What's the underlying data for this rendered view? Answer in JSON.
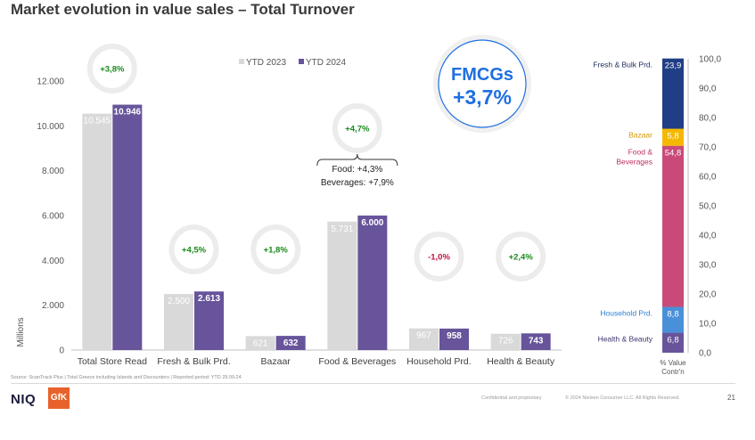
{
  "title": "Market evolution in value sales – Total Turnover",
  "chart_data": [
    {
      "type": "bar",
      "categories": [
        "Total Store Read",
        "Fresh & Bulk Prd.",
        "Bazaar",
        "Food & Beverages",
        "Household Prd.",
        "Health & Beauty"
      ],
      "series": [
        {
          "name": "YTD 2023",
          "values": [
            10545,
            2500,
            621,
            5731,
            967,
            726
          ],
          "labels": [
            "10.545",
            "2.500",
            "621",
            "5.731",
            "967",
            "726"
          ],
          "color": "#d9d9d9"
        },
        {
          "name": "YTD 2024",
          "values": [
            10946,
            2613,
            632,
            6000,
            958,
            743
          ],
          "labels": [
            "10.946",
            "2.613",
            "632",
            "6.000",
            "958",
            "743"
          ],
          "color": "#67549a"
        }
      ],
      "growth": [
        "+3,8%",
        "+4,5%",
        "+1,8%",
        "+4,7%",
        "-1,0%",
        "+2,4%"
      ],
      "growth_colors": [
        "#1a8a1a",
        "#1a8a1a",
        "#1a8a1a",
        "#1a8a1a",
        "#c0143c",
        "#1a8a1a"
      ],
      "ylim": [
        0,
        12000
      ],
      "yticks": [
        0,
        2000,
        4000,
        6000,
        8000,
        10000,
        12000
      ],
      "ytick_labels": [
        "0",
        "2.000",
        "4.000",
        "6.000",
        "8.000",
        "10.000",
        "12.000"
      ],
      "ylabel": "Millions",
      "grid": false,
      "legend": "top-center",
      "annotation": {
        "line1": "Food: +4,3%",
        "line2": "Beverages: +7,9%"
      }
    },
    {
      "type": "bar",
      "stacked": true,
      "segments": [
        {
          "name": "Health & Beauty",
          "value": 6.8,
          "label": "6,8",
          "color": "#67549a",
          "label_color": "#3d3470"
        },
        {
          "name": "Household Prd.",
          "value": 8.8,
          "label": "8,8",
          "color": "#4a90d9",
          "label_color": "#2f7fd0"
        },
        {
          "name": "Food & Beverages",
          "value": 54.8,
          "label": "54,8",
          "color": "#c94a78",
          "label_color": "#c0305e"
        },
        {
          "name": "Bazaar",
          "value": 5.8,
          "label": "5,8",
          "color": "#f5b800",
          "label_color": "#d29a00"
        },
        {
          "name": "Fresh & Bulk Prd.",
          "value": 23.9,
          "label": "23,9",
          "color": "#1f3e86",
          "label_color": "#1c2c5c"
        }
      ],
      "ylim": [
        0,
        100
      ],
      "yticks": [
        0,
        10,
        20,
        30,
        40,
        50,
        60,
        70,
        80,
        90,
        100
      ],
      "ytick_labels": [
        "0,0",
        "10,0",
        "20,0",
        "30,0",
        "40,0",
        "50,0",
        "60,0",
        "70,0",
        "80,0",
        "90,0",
        "100,0"
      ],
      "xlabel_line1": "% Value",
      "xlabel_line2": "Contr'n",
      "labels": [
        "Health & Beauty",
        "Household Prd.",
        "Food &\nBeverages",
        "Bazaar",
        "Fresh & Bulk Prd."
      ]
    }
  ],
  "fmcg": {
    "line1": "FMCGs",
    "line2": "+3,7%",
    "color": "#1f6fe0"
  },
  "footer": {
    "source": "Source: ScanTrack Plus | Total Greece including Islands and Discounters | Reported period: YTD 29.09.24",
    "niq": "NIQ",
    "gfk": "GfK",
    "confidential": "Confidential and proprietary",
    "copyright": "© 2024 Nielsen Consumer LLC. All Rights Reserved.",
    "page": "21"
  }
}
